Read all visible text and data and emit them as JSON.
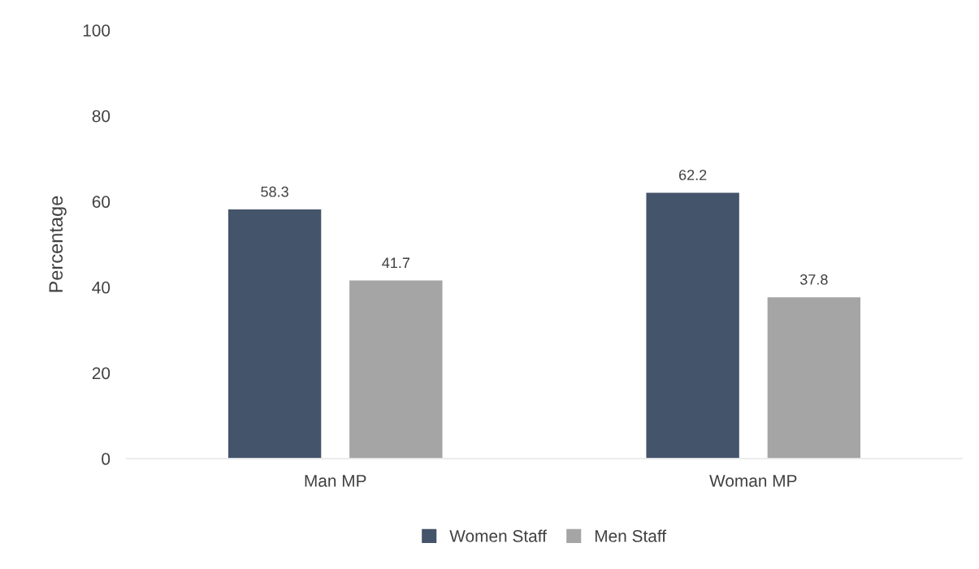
{
  "chart_data": {
    "type": "bar",
    "ylabel": "Percentage",
    "categories": [
      "Man MP",
      "Woman MP"
    ],
    "series": [
      {
        "name": "Women Staff",
        "color": "#44546a",
        "values": [
          58.3,
          62.2
        ]
      },
      {
        "name": "Men Staff",
        "color": "#a5a5a5",
        "values": [
          41.7,
          37.8
        ]
      }
    ],
    "ylim": [
      0,
      100
    ],
    "yticks": [
      0,
      20,
      40,
      60,
      80,
      100
    ],
    "grid": false,
    "legend": "bottom",
    "data_labels": true
  }
}
